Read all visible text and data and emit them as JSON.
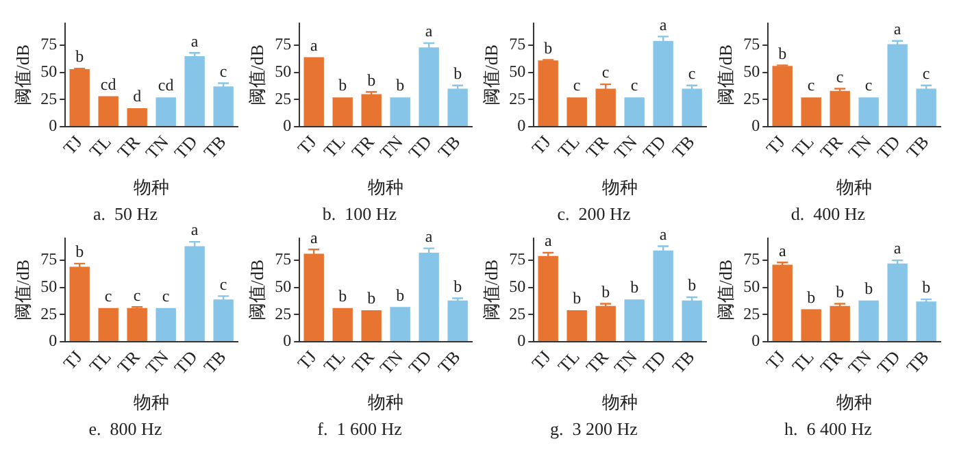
{
  "chart_data": [
    {
      "type": "bar",
      "title": "a.  50 Hz",
      "xlabel": "物种",
      "ylabel": "阈值/dB",
      "categories": [
        "TJ",
        "TL",
        "TR",
        "TN",
        "TD",
        "TB"
      ],
      "values": [
        53,
        28,
        17,
        27,
        65,
        37
      ],
      "errors": [
        0.5,
        null,
        null,
        null,
        3,
        3
      ],
      "colors": [
        "#e87431",
        "#e87431",
        "#e87431",
        "#86c5e8",
        "#86c5e8",
        "#86c5e8"
      ],
      "ylim": [
        0,
        95
      ],
      "yticks": [
        0,
        25,
        50,
        75
      ],
      "grid": false,
      "annotations": [
        {
          "text": "b",
          "x": "TJ",
          "y": 53.5
        },
        {
          "text": "cd",
          "x": "TL",
          "y": 28
        },
        {
          "text": "d",
          "x": "TR",
          "y": 17
        },
        {
          "text": "cd",
          "x": "TN",
          "y": 27
        },
        {
          "text": "a",
          "x": "TD",
          "y": 68
        },
        {
          "text": "c",
          "x": "TB",
          "y": 40
        }
      ]
    },
    {
      "type": "bar",
      "title": "b.  100 Hz",
      "xlabel": "物种",
      "ylabel": "阈值/dB",
      "categories": [
        "TJ",
        "TL",
        "TR",
        "TN",
        "TD",
        "TB"
      ],
      "values": [
        64,
        27,
        30,
        27,
        73,
        35
      ],
      "errors": [
        null,
        null,
        2,
        null,
        4,
        3
      ],
      "colors": [
        "#e87431",
        "#e87431",
        "#e87431",
        "#86c5e8",
        "#86c5e8",
        "#86c5e8"
      ],
      "ylim": [
        0,
        95
      ],
      "yticks": [
        0,
        25,
        50,
        75
      ],
      "grid": false,
      "annotations": [
        {
          "text": "a",
          "x": "TJ",
          "y": 64
        },
        {
          "text": "b",
          "x": "TL",
          "y": 27
        },
        {
          "text": "b",
          "x": "TR",
          "y": 32
        },
        {
          "text": "b",
          "x": "TN",
          "y": 27
        },
        {
          "text": "a",
          "x": "TD",
          "y": 77
        },
        {
          "text": "b",
          "x": "TB",
          "y": 38
        }
      ]
    },
    {
      "type": "bar",
      "title": "c.  200 Hz",
      "xlabel": "物种",
      "ylabel": "阈值/dB",
      "categories": [
        "TJ",
        "TL",
        "TR",
        "TN",
        "TD",
        "TB"
      ],
      "values": [
        61,
        27,
        35,
        27,
        79,
        35
      ],
      "errors": [
        0.5,
        null,
        4,
        null,
        4,
        3
      ],
      "colors": [
        "#e87431",
        "#e87431",
        "#e87431",
        "#86c5e8",
        "#86c5e8",
        "#86c5e8"
      ],
      "ylim": [
        0,
        95
      ],
      "yticks": [
        0,
        25,
        50,
        75
      ],
      "grid": false,
      "annotations": [
        {
          "text": "b",
          "x": "TJ",
          "y": 61.5
        },
        {
          "text": "c",
          "x": "TL",
          "y": 27
        },
        {
          "text": "c",
          "x": "TR",
          "y": 39
        },
        {
          "text": "c",
          "x": "TN",
          "y": 27
        },
        {
          "text": "a",
          "x": "TD",
          "y": 83
        },
        {
          "text": "c",
          "x": "TB",
          "y": 38
        }
      ]
    },
    {
      "type": "bar",
      "title": "d.  400 Hz",
      "xlabel": "物种",
      "ylabel": "阈值/dB",
      "categories": [
        "TJ",
        "TL",
        "TR",
        "TN",
        "TD",
        "TB"
      ],
      "values": [
        56,
        27,
        33,
        27,
        76,
        35
      ],
      "errors": [
        0.5,
        null,
        2,
        null,
        3,
        3
      ],
      "colors": [
        "#e87431",
        "#e87431",
        "#e87431",
        "#86c5e8",
        "#86c5e8",
        "#86c5e8"
      ],
      "ylim": [
        0,
        95
      ],
      "yticks": [
        0,
        25,
        50,
        75
      ],
      "grid": false,
      "annotations": [
        {
          "text": "b",
          "x": "TJ",
          "y": 56.5
        },
        {
          "text": "c",
          "x": "TL",
          "y": 27
        },
        {
          "text": "c",
          "x": "TR",
          "y": 35
        },
        {
          "text": "c",
          "x": "TN",
          "y": 27
        },
        {
          "text": "a",
          "x": "TD",
          "y": 79
        },
        {
          "text": "c",
          "x": "TB",
          "y": 38
        }
      ]
    },
    {
      "type": "bar",
      "title": "e.  800 Hz",
      "xlabel": "物种",
      "ylabel": "阈值/dB",
      "categories": [
        "TJ",
        "TL",
        "TR",
        "TN",
        "TD",
        "TB"
      ],
      "values": [
        69,
        31,
        31,
        31,
        88,
        39
      ],
      "errors": [
        3,
        null,
        1,
        null,
        4,
        3
      ],
      "colors": [
        "#e87431",
        "#e87431",
        "#e87431",
        "#86c5e8",
        "#86c5e8",
        "#86c5e8"
      ],
      "ylim": [
        0,
        95
      ],
      "yticks": [
        0,
        25,
        50,
        75
      ],
      "grid": false,
      "annotations": [
        {
          "text": "b",
          "x": "TJ",
          "y": 72
        },
        {
          "text": "c",
          "x": "TL",
          "y": 31
        },
        {
          "text": "c",
          "x": "TR",
          "y": 32
        },
        {
          "text": "c",
          "x": "TN",
          "y": 31
        },
        {
          "text": "a",
          "x": "TD",
          "y": 92
        },
        {
          "text": "c",
          "x": "TB",
          "y": 42
        }
      ]
    },
    {
      "type": "bar",
      "title": "f.  1 600 Hz",
      "xlabel": "物种",
      "ylabel": "阈值/dB",
      "categories": [
        "TJ",
        "TL",
        "TR",
        "TN",
        "TD",
        "TB"
      ],
      "values": [
        81,
        31,
        29,
        32,
        82,
        38
      ],
      "errors": [
        4,
        null,
        null,
        null,
        4,
        2
      ],
      "colors": [
        "#e87431",
        "#e87431",
        "#e87431",
        "#86c5e8",
        "#86c5e8",
        "#86c5e8"
      ],
      "ylim": [
        0,
        95
      ],
      "yticks": [
        0,
        25,
        50,
        75
      ],
      "grid": false,
      "annotations": [
        {
          "text": "a",
          "x": "TJ",
          "y": 85
        },
        {
          "text": "b",
          "x": "TL",
          "y": 31
        },
        {
          "text": "b",
          "x": "TR",
          "y": 29
        },
        {
          "text": "b",
          "x": "TN",
          "y": 32
        },
        {
          "text": "a",
          "x": "TD",
          "y": 86
        },
        {
          "text": "b",
          "x": "TB",
          "y": 40
        }
      ]
    },
    {
      "type": "bar",
      "title": "g.  3 200 Hz",
      "xlabel": "物种",
      "ylabel": "阈值/dB",
      "categories": [
        "TJ",
        "TL",
        "TR",
        "TN",
        "TD",
        "TB"
      ],
      "values": [
        79,
        29,
        33,
        39,
        84,
        38
      ],
      "errors": [
        3,
        null,
        2,
        null,
        4,
        3
      ],
      "colors": [
        "#e87431",
        "#e87431",
        "#e87431",
        "#86c5e8",
        "#86c5e8",
        "#86c5e8"
      ],
      "ylim": [
        0,
        95
      ],
      "yticks": [
        0,
        25,
        50,
        75
      ],
      "grid": false,
      "annotations": [
        {
          "text": "a",
          "x": "TJ",
          "y": 82
        },
        {
          "text": "b",
          "x": "TL",
          "y": 29
        },
        {
          "text": "b",
          "x": "TR",
          "y": 35
        },
        {
          "text": "b",
          "x": "TN",
          "y": 39
        },
        {
          "text": "a",
          "x": "TD",
          "y": 88
        },
        {
          "text": "b",
          "x": "TB",
          "y": 41
        }
      ]
    },
    {
      "type": "bar",
      "title": "h.  6 400 Hz",
      "xlabel": "物种",
      "ylabel": "阈值/dB",
      "categories": [
        "TJ",
        "TL",
        "TR",
        "TN",
        "TD",
        "TB"
      ],
      "values": [
        71,
        30,
        33,
        38,
        72,
        37
      ],
      "errors": [
        2,
        null,
        2,
        null,
        3,
        2
      ],
      "colors": [
        "#e87431",
        "#e87431",
        "#e87431",
        "#86c5e8",
        "#86c5e8",
        "#86c5e8"
      ],
      "ylim": [
        0,
        95
      ],
      "yticks": [
        0,
        25,
        50,
        75
      ],
      "grid": false,
      "annotations": [
        {
          "text": "a",
          "x": "TJ",
          "y": 73
        },
        {
          "text": "b",
          "x": "TL",
          "y": 30
        },
        {
          "text": "b",
          "x": "TR",
          "y": 35
        },
        {
          "text": "b",
          "x": "TN",
          "y": 38
        },
        {
          "text": "a",
          "x": "TD",
          "y": 75
        },
        {
          "text": "b",
          "x": "TB",
          "y": 39
        }
      ]
    }
  ]
}
